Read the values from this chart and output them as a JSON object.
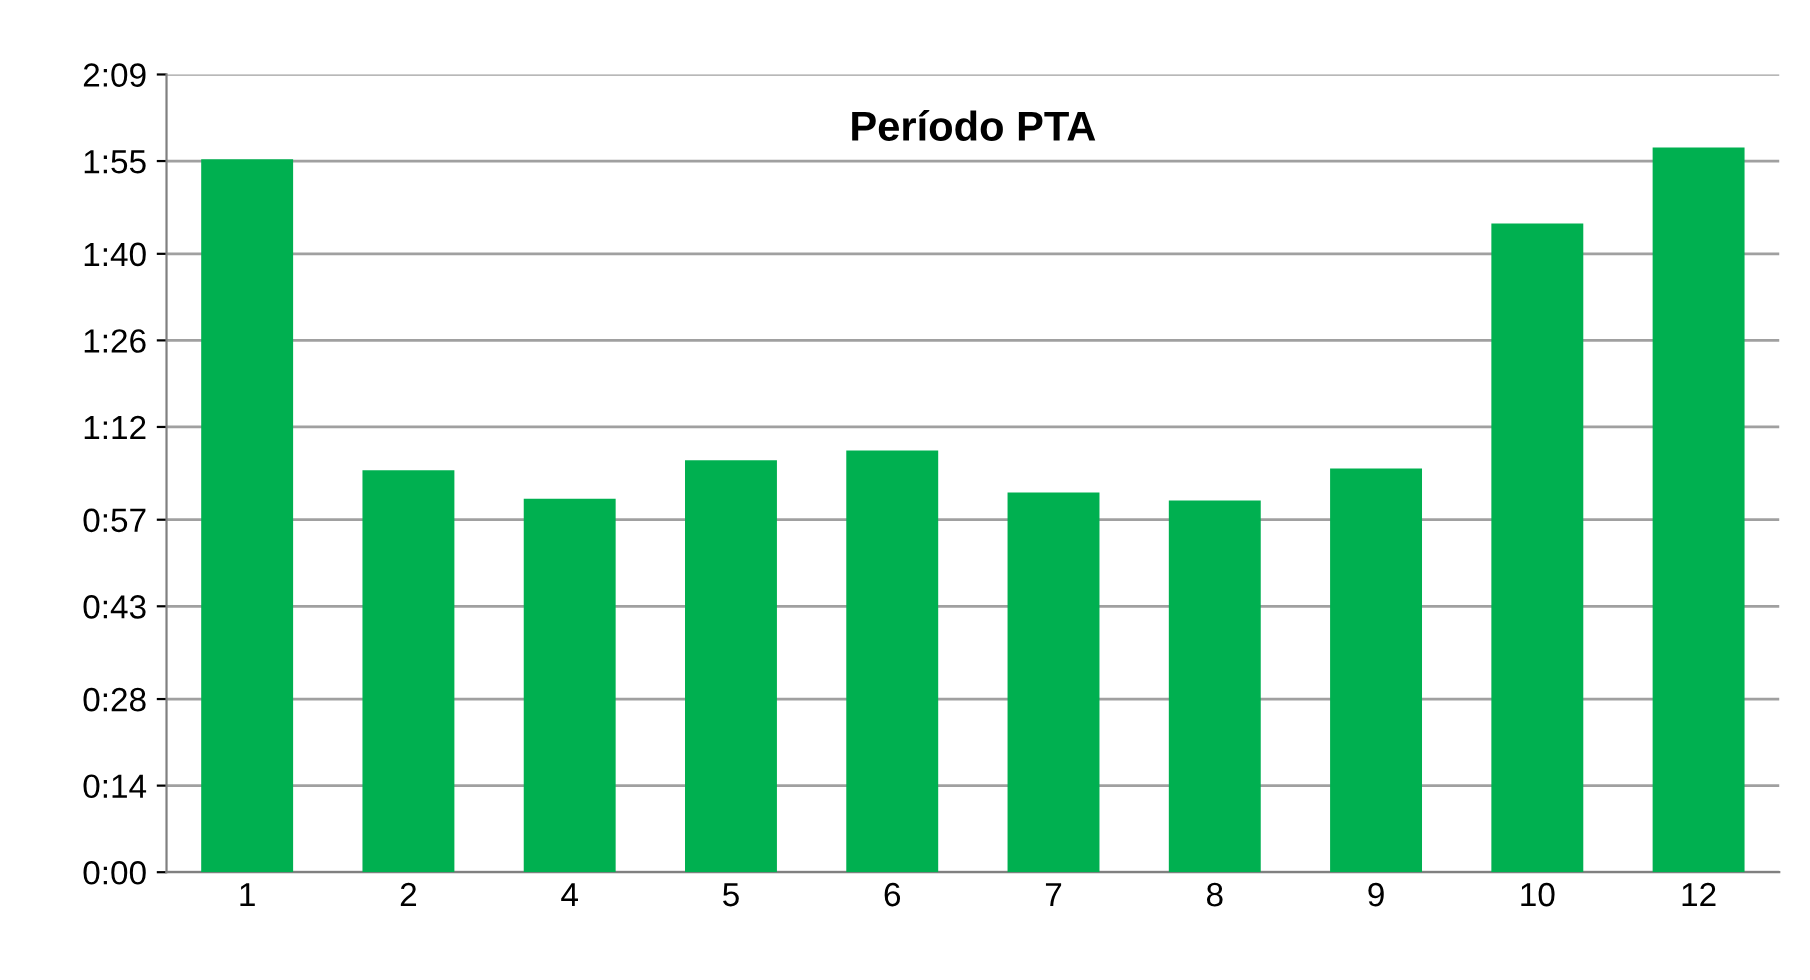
{
  "chart_data": {
    "type": "bar",
    "title": "Período PTA",
    "categories": [
      "1",
      "2",
      "4",
      "5",
      "6",
      "7",
      "8",
      "9",
      "10",
      "12"
    ],
    "values": [
      115.3,
      65.0,
      60.4,
      66.6,
      68.2,
      61.4,
      60.1,
      65.3,
      104.9,
      117.2
    ],
    "color": "#00b050",
    "ylim": [
      0,
      129
    ],
    "yticks": [
      {
        "value": 0,
        "label": "0:00"
      },
      {
        "value": 14,
        "label": "0:14"
      },
      {
        "value": 28,
        "label": "0:28"
      },
      {
        "value": 43,
        "label": "0:43"
      },
      {
        "value": 57,
        "label": "0:57"
      },
      {
        "value": 72,
        "label": "1:12"
      },
      {
        "value": 86,
        "label": "1:26"
      },
      {
        "value": 100,
        "label": "1:40"
      },
      {
        "value": 115,
        "label": "1:55"
      },
      {
        "value": 129,
        "label": "2:09"
      }
    ],
    "grid": "y",
    "legend": false
  }
}
